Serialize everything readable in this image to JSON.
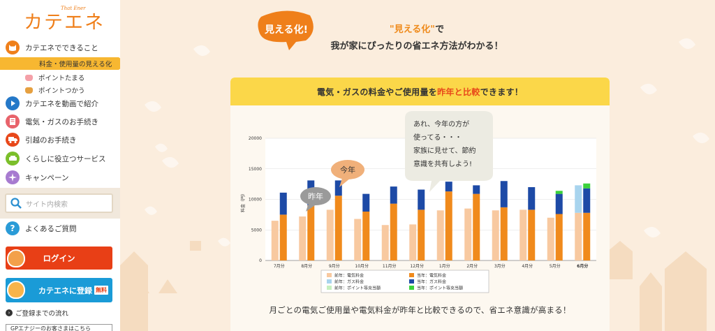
{
  "sidebar": {
    "logo_text": "カテエネ",
    "logo_sub": "That Ener",
    "nav": [
      {
        "label": "カテエネでできること",
        "icon": "cat-face-icon",
        "color": "#ef7f1a"
      },
      {
        "label": "カテエネを動画で紹介",
        "icon": "play-icon",
        "color": "#2478c8"
      },
      {
        "label": "電気・ガスのお手続き",
        "icon": "document-icon",
        "color": "#e8636b"
      },
      {
        "label": "引越のお手続き",
        "icon": "truck-icon",
        "color": "#e8481a"
      },
      {
        "label": "くらしに役立つサービス",
        "icon": "sofa-icon",
        "color": "#7bbf2a"
      },
      {
        "label": "キャンペーン",
        "icon": "sparkle-icon",
        "color": "#a77bd0"
      }
    ],
    "sub_active": "料金・使用量の見える化",
    "sub_items": [
      "ポイントたまる",
      "ポイントつかう"
    ],
    "search_placeholder": "サイト内検索",
    "faq": "よくあるご質問",
    "login": "ログイン",
    "register": "カテエネに登録",
    "register_badge": "無料",
    "flow": "ご登録までの流れ",
    "bottom_strip": "GPエナジーのお客さまはこちら"
  },
  "main": {
    "badge": "見える化!",
    "headline_hl": "\"見える化\"",
    "headline_l1_rest": "で",
    "headline_l2": "我が家にぴったりの省エネ方法がわかる！",
    "panel_title_pre": "電気・ガスの料金やご使用量を",
    "panel_title_hl": "昨年と比較",
    "panel_title_post": "できます！",
    "caption": "月ごとの電気ご使用量や電気料金が昨年と比較できるので、省エネ意識が高まる！"
  },
  "chart_data": {
    "type": "bar",
    "ylabel": "料金（円）",
    "ylim": [
      0,
      20000
    ],
    "yticks": [
      0,
      5000,
      10000,
      15000,
      20000
    ],
    "categories": [
      "7月分",
      "8月分",
      "9月分",
      "10月分",
      "11月分",
      "12月分",
      "1月分",
      "2月分",
      "3月分",
      "4月分",
      "5月分",
      "6月分"
    ],
    "series": [
      {
        "name": "前年：電気料金",
        "group": "prev",
        "color": "#f8c9a0",
        "values": [
          6500,
          7200,
          8300,
          6800,
          5800,
          5900,
          8200,
          8500,
          8200,
          8300,
          7000,
          7800
        ]
      },
      {
        "name": "前年：ガス料金",
        "group": "prev",
        "color": "#a8d4ee",
        "values": [
          0,
          0,
          0,
          0,
          0,
          0,
          0,
          0,
          0,
          0,
          0,
          4500
        ]
      },
      {
        "name": "前年：ポイント等充当額",
        "group": "prev",
        "color": "#c6f0c0",
        "values": [
          0,
          0,
          0,
          0,
          0,
          0,
          0,
          0,
          0,
          0,
          0,
          0
        ]
      },
      {
        "name": "当年：電気料金",
        "group": "curr",
        "color": "#f08a1c",
        "values": [
          7500,
          9000,
          10600,
          8000,
          9300,
          8300,
          11300,
          10900,
          8700,
          8300,
          7600,
          7800
        ]
      },
      {
        "name": "当年：ガス料金",
        "group": "curr",
        "color": "#1d4aa6",
        "values": [
          3600,
          4100,
          2500,
          2900,
          2800,
          3300,
          1600,
          1400,
          4300,
          3700,
          3300,
          4000
        ]
      },
      {
        "name": "当年：ポイント等充当額",
        "group": "curr",
        "color": "#3bd23b",
        "values": [
          0,
          0,
          0,
          0,
          0,
          0,
          0,
          0,
          0,
          0,
          500,
          800
        ]
      }
    ],
    "callouts": [
      {
        "text": "昨年",
        "color": "#9a9a9a"
      },
      {
        "text": "今年",
        "color": "#f0b07a"
      },
      {
        "lines": [
          "あれ、今年の方が",
          "使ってる・・・",
          "家族に見せて、節約",
          "意識を共有しよう!"
        ],
        "color": "#ecebe2"
      }
    ]
  }
}
